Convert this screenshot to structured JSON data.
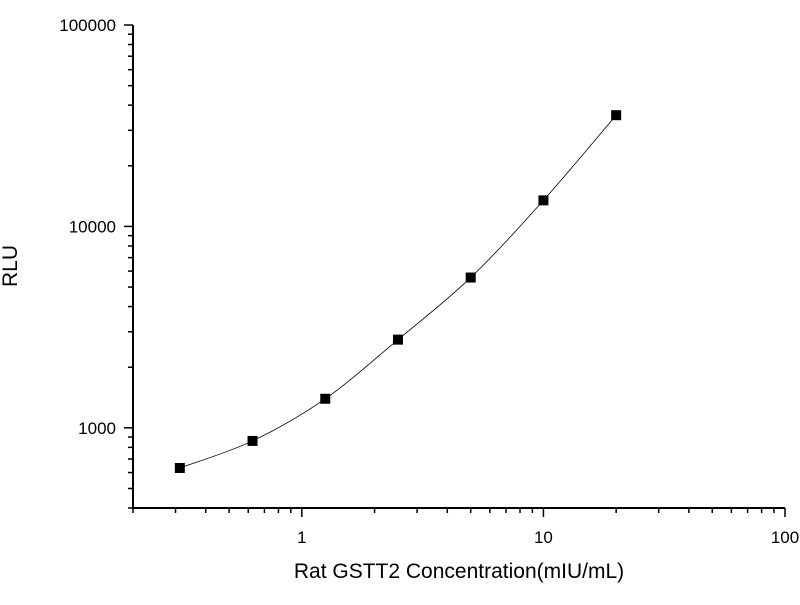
{
  "chart_data": {
    "type": "line",
    "title": "",
    "xlabel": "Rat GSTT2 Concentration(mIU/mL)",
    "ylabel": "RLU",
    "xscale": "log",
    "yscale": "log",
    "xlim": [
      0.2,
      100
    ],
    "ylim": [
      400,
      100000
    ],
    "x_ticks": [
      1,
      10,
      100
    ],
    "x_tick_labels": [
      "1",
      "10",
      "100"
    ],
    "y_ticks": [
      1000,
      10000,
      100000
    ],
    "y_tick_labels": [
      "1000",
      "10000",
      "100000"
    ],
    "grid": false,
    "legend": "none",
    "marker": "square",
    "color": "#000000",
    "x": [
      0.3125,
      0.625,
      1.25,
      2.5,
      5,
      10,
      20
    ],
    "y": [
      632,
      861,
      1394,
      2741,
      5575,
      13470,
      35660
    ]
  }
}
